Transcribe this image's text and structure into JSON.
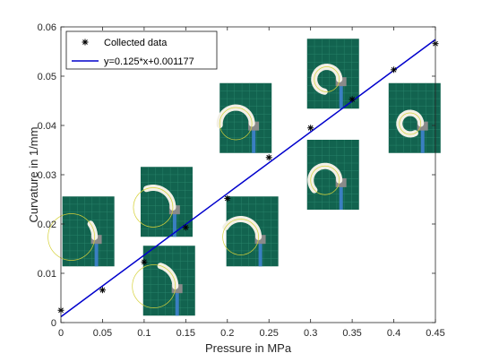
{
  "chart_data": {
    "type": "scatter",
    "xlabel": "Pressure in MPa",
    "ylabel": "Curvature in 1/mm",
    "xlim": [
      0,
      0.45
    ],
    "ylim": [
      0,
      0.06
    ],
    "x_ticks": [
      "0",
      "0.05",
      "0.1",
      "0.15",
      "0.2",
      "0.25",
      "0.3",
      "0.35",
      "0.4",
      "0.45"
    ],
    "y_ticks": [
      "0",
      "0.01",
      "0.02",
      "0.03",
      "0.04",
      "0.05",
      "0.06"
    ],
    "grid": false,
    "legend_position": "top-left",
    "series": [
      {
        "name": "Collected data",
        "kind": "scatter",
        "marker": "asterisk",
        "color": "#000000",
        "x": [
          0,
          0.05,
          0.1,
          0.15,
          0.2,
          0.25,
          0.3,
          0.35,
          0.4,
          0.45
        ],
        "y": [
          0.0025,
          0.0066,
          0.0123,
          0.0193,
          0.0252,
          0.0335,
          0.0395,
          0.0453,
          0.0513,
          0.0566
        ]
      },
      {
        "name": "y=0.125*x+0.001177",
        "kind": "line",
        "color": "#0000cc",
        "slope": 0.125,
        "intercept": 0.001177
      }
    ],
    "inset_photos": [
      {
        "data_x": 0.033,
        "data_y": 0.0185,
        "label": "0.05 MPa actuator photo"
      },
      {
        "data_x": 0.13,
        "data_y": 0.0085,
        "label": "0.1 MPa actuator photo"
      },
      {
        "data_x": 0.127,
        "data_y": 0.0245,
        "label": "0.15 MPa actuator photo"
      },
      {
        "data_x": 0.23,
        "data_y": 0.0185,
        "label": "0.2 MPa actuator photo"
      },
      {
        "data_x": 0.222,
        "data_y": 0.0415,
        "label": "0.25 MPa actuator photo"
      },
      {
        "data_x": 0.327,
        "data_y": 0.03,
        "label": "0.3 MPa actuator photo"
      },
      {
        "data_x": 0.327,
        "data_y": 0.0505,
        "label": "0.35 MPa actuator photo"
      },
      {
        "data_x": 0.425,
        "data_y": 0.0415,
        "label": "0.4 MPa actuator photo"
      }
    ]
  }
}
